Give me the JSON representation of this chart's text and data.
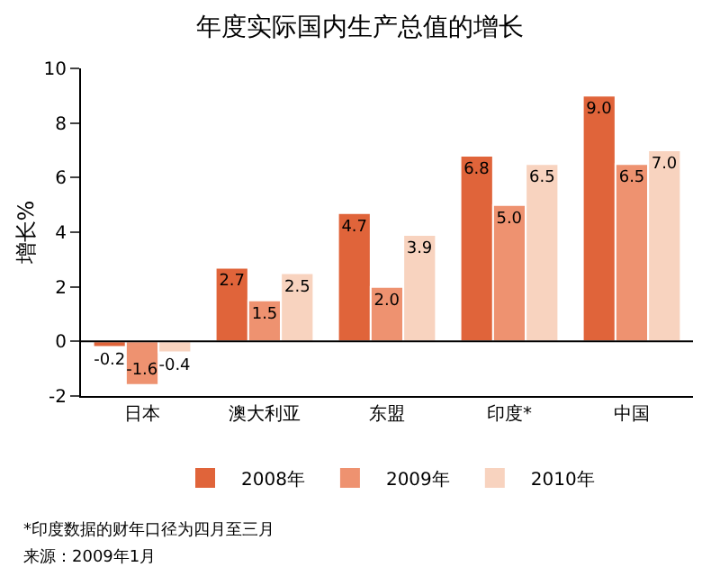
{
  "chart_data": {
    "type": "bar",
    "title": "年度实际国内生产总值的增长",
    "ylabel": "增长%",
    "categories": [
      "日本",
      "澳大利亚",
      "东盟",
      "印度*",
      "中国"
    ],
    "series": [
      {
        "name": "2008年",
        "color": "#e0643a",
        "values": [
          -0.2,
          2.7,
          4.7,
          6.8,
          9.0
        ],
        "value_labels": [
          "-0.2",
          "2.7",
          "4.7",
          "6.8",
          "9.0"
        ]
      },
      {
        "name": "2009年",
        "color": "#ee9270",
        "values": [
          -1.6,
          1.5,
          2.0,
          5.0,
          6.5
        ],
        "value_labels": [
          "-1.6",
          "1.5",
          "2.0",
          "5.0",
          "6.5"
        ]
      },
      {
        "name": "2010年",
        "color": "#f8d3bf",
        "values": [
          -0.4,
          2.5,
          3.9,
          6.5,
          7.0
        ],
        "value_labels": [
          "-0.4",
          "2.5",
          "3.9",
          "6.5",
          "7.0"
        ]
      }
    ],
    "ylim": [
      -2,
      10
    ],
    "yticks": [
      -2,
      0,
      2,
      4,
      6,
      8,
      10
    ],
    "legend": "bottom",
    "ref_lines": [
      {
        "axis": "y",
        "value": 0,
        "color": "#000000"
      }
    ],
    "annotations": [
      "*印度数据的财年口径为四月至三月",
      "来源：2009年1月"
    ]
  }
}
